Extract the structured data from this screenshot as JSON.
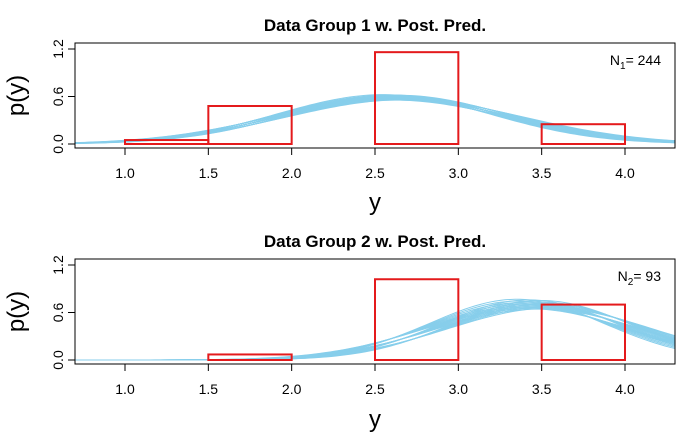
{
  "chart_data": [
    {
      "type": "histogram_with_posterior_curves",
      "title": "Data Group 1 w. Post. Pred.",
      "xlabel": "y",
      "ylabel": "p(y)",
      "xlim": [
        0.7,
        4.3
      ],
      "ylim": [
        0,
        1.2
      ],
      "xticks": [
        "1.0",
        "1.5",
        "2.0",
        "2.5",
        "3.0",
        "3.5",
        "4.0"
      ],
      "yticks": [
        "0.0",
        "0.6",
        "1.2"
      ],
      "annotation": {
        "symbol": "N",
        "subscript": "1",
        "text": "= 244"
      },
      "histogram": {
        "color": "#e41a1c",
        "bins": [
          {
            "x0": 0.7,
            "x1": 1.0,
            "density": 0.0
          },
          {
            "x0": 1.0,
            "x1": 1.5,
            "density": 0.05
          },
          {
            "x0": 1.5,
            "x1": 2.0,
            "density": 0.48
          },
          {
            "x0": 2.0,
            "x1": 2.5,
            "density": 0.0
          },
          {
            "x0": 2.5,
            "x1": 3.0,
            "density": 1.16
          },
          {
            "x0": 3.0,
            "x1": 3.5,
            "density": 0.0
          },
          {
            "x0": 3.5,
            "x1": 4.0,
            "density": 0.25
          },
          {
            "x0": 4.0,
            "x1": 4.3,
            "density": 0.0
          }
        ]
      },
      "posterior_curves": {
        "color": "#87ceeb",
        "count": 20,
        "family": "normal",
        "mean_range": [
          2.55,
          2.68
        ],
        "sd_range": [
          0.64,
          0.72
        ]
      }
    },
    {
      "type": "histogram_with_posterior_curves",
      "title": "Data Group 2 w. Post. Pred.",
      "xlabel": "y",
      "ylabel": "p(y)",
      "xlim": [
        0.7,
        4.3
      ],
      "ylim": [
        0,
        1.2
      ],
      "xticks": [
        "1.0",
        "1.5",
        "2.0",
        "2.5",
        "3.0",
        "3.5",
        "4.0"
      ],
      "yticks": [
        "0.0",
        "0.6",
        "1.2"
      ],
      "annotation": {
        "symbol": "N",
        "subscript": "2",
        "text": "= 93"
      },
      "histogram": {
        "color": "#e41a1c",
        "bins": [
          {
            "x0": 0.7,
            "x1": 1.0,
            "density": 0.0
          },
          {
            "x0": 1.0,
            "x1": 1.5,
            "density": 0.0
          },
          {
            "x0": 1.5,
            "x1": 2.0,
            "density": 0.07
          },
          {
            "x0": 2.0,
            "x1": 2.5,
            "density": 0.0
          },
          {
            "x0": 2.5,
            "x1": 3.0,
            "density": 1.02
          },
          {
            "x0": 3.0,
            "x1": 3.5,
            "density": 0.0
          },
          {
            "x0": 3.5,
            "x1": 4.0,
            "density": 0.7
          },
          {
            "x0": 4.0,
            "x1": 4.3,
            "density": 0.0
          }
        ]
      },
      "posterior_curves": {
        "color": "#87ceeb",
        "count": 20,
        "family": "normal",
        "mean_range": [
          3.35,
          3.55
        ],
        "sd_range": [
          0.52,
          0.62
        ]
      }
    }
  ]
}
